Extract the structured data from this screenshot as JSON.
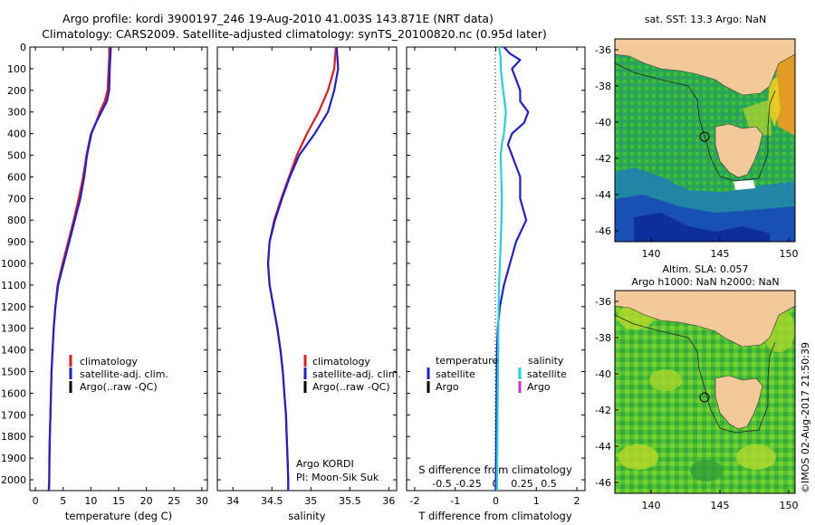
{
  "header": {
    "title_line1": "Argo profile: kordi 3900197_246 19-Aug-2010 41.003S 143.871E (NRT data)",
    "title_line2": "Climatology: CARS2009. Satellite-adjusted climatology: synTS_20100820.nc (0.95d later)"
  },
  "colors": {
    "climatology": "#e41a1c",
    "satellite": "#1f1fd6",
    "argo": "#000000",
    "satellite_s": "#22d3d8",
    "argo_s": "#cc33cc",
    "land": "#f4c99a"
  },
  "depth_ticks": [
    0,
    100,
    200,
    300,
    400,
    500,
    600,
    700,
    800,
    900,
    1000,
    1100,
    1200,
    1300,
    1400,
    1500,
    1600,
    1700,
    1800,
    1900,
    2000
  ],
  "chart_data": [
    {
      "id": "temperature",
      "type": "line",
      "xlabel": "temperature (deg C)",
      "xlim": [
        -1,
        31
      ],
      "ylim": [
        2050,
        0
      ],
      "xticks": [
        0,
        5,
        10,
        15,
        20,
        25,
        30
      ],
      "legend": [
        "climatology",
        "satellite-adj. clim.",
        "Argo(..raw -QC)"
      ],
      "series": [
        {
          "name": "climatology",
          "color": "#e41a1c",
          "points": [
            [
              13.3,
              0
            ],
            [
              13.3,
              50
            ],
            [
              13.2,
              100
            ],
            [
              13.0,
              200
            ],
            [
              12.5,
              250
            ],
            [
              11.6,
              300
            ],
            [
              10.9,
              350
            ],
            [
              10.0,
              400
            ],
            [
              9.6,
              450
            ],
            [
              9.2,
              500
            ],
            [
              8.6,
              600
            ],
            [
              7.8,
              700
            ],
            [
              6.9,
              800
            ],
            [
              5.9,
              900
            ],
            [
              4.9,
              1000
            ],
            [
              4.0,
              1100
            ],
            [
              3.6,
              1200
            ],
            [
              3.3,
              1300
            ],
            [
              3.1,
              1400
            ],
            [
              2.9,
              1500
            ],
            [
              2.8,
              1600
            ],
            [
              2.7,
              1700
            ],
            [
              2.6,
              1800
            ],
            [
              2.5,
              1900
            ],
            [
              2.5,
              2000
            ],
            [
              2.4,
              2050
            ]
          ]
        },
        {
          "name": "satellite-adj. clim.",
          "color": "#1f1fd6",
          "points": [
            [
              13.6,
              0
            ],
            [
              13.5,
              50
            ],
            [
              13.4,
              100
            ],
            [
              13.3,
              200
            ],
            [
              12.9,
              250
            ],
            [
              11.9,
              300
            ],
            [
              10.9,
              350
            ],
            [
              10.1,
              400
            ],
            [
              9.7,
              450
            ],
            [
              9.3,
              500
            ],
            [
              8.8,
              600
            ],
            [
              8.1,
              700
            ],
            [
              7.1,
              800
            ],
            [
              6.1,
              900
            ],
            [
              5.1,
              1000
            ],
            [
              4.1,
              1100
            ],
            [
              3.6,
              1200
            ],
            [
              3.3,
              1300
            ],
            [
              3.1,
              1400
            ],
            [
              2.9,
              1500
            ],
            [
              2.8,
              1600
            ],
            [
              2.7,
              1700
            ],
            [
              2.6,
              1800
            ],
            [
              2.55,
              1900
            ],
            [
              2.5,
              2000
            ],
            [
              2.45,
              2050
            ]
          ]
        }
      ]
    },
    {
      "id": "salinity",
      "type": "line",
      "xlabel": "salinity",
      "xlim": [
        33.8,
        36.1
      ],
      "ylim": [
        2050,
        0
      ],
      "xticks": [
        34,
        34.5,
        35,
        35.5,
        36
      ],
      "legend": [
        "climatology",
        "satellite-adj. clim.",
        "Argo(..raw -QC)"
      ],
      "annotations": [
        "Argo KORDI",
        "PI: Moon-Sik Suk"
      ],
      "series": [
        {
          "name": "climatology",
          "color": "#e41a1c",
          "points": [
            [
              35.32,
              0
            ],
            [
              35.31,
              50
            ],
            [
              35.3,
              100
            ],
            [
              35.22,
              200
            ],
            [
              35.1,
              300
            ],
            [
              34.95,
              400
            ],
            [
              34.82,
              500
            ],
            [
              34.72,
              600
            ],
            [
              34.62,
              700
            ],
            [
              34.53,
              800
            ],
            [
              34.47,
              900
            ],
            [
              34.45,
              1000
            ],
            [
              34.47,
              1100
            ],
            [
              34.52,
              1200
            ],
            [
              34.57,
              1300
            ],
            [
              34.61,
              1400
            ],
            [
              34.64,
              1500
            ],
            [
              34.66,
              1600
            ],
            [
              34.68,
              1700
            ],
            [
              34.69,
              1800
            ],
            [
              34.7,
              1900
            ],
            [
              34.71,
              2000
            ],
            [
              34.71,
              2050
            ]
          ]
        },
        {
          "name": "satellite-adj. clim.",
          "color": "#1f1fd6",
          "points": [
            [
              35.33,
              0
            ],
            [
              35.34,
              50
            ],
            [
              35.35,
              100
            ],
            [
              35.3,
              200
            ],
            [
              35.22,
              300
            ],
            [
              35.05,
              400
            ],
            [
              34.85,
              500
            ],
            [
              34.73,
              600
            ],
            [
              34.63,
              700
            ],
            [
              34.54,
              800
            ],
            [
              34.47,
              900
            ],
            [
              34.45,
              1000
            ],
            [
              34.47,
              1100
            ],
            [
              34.52,
              1200
            ],
            [
              34.57,
              1300
            ],
            [
              34.61,
              1400
            ],
            [
              34.64,
              1500
            ],
            [
              34.66,
              1600
            ],
            [
              34.68,
              1700
            ],
            [
              34.69,
              1800
            ],
            [
              34.7,
              1900
            ],
            [
              34.71,
              2000
            ],
            [
              34.71,
              2050
            ]
          ]
        }
      ]
    },
    {
      "id": "differences",
      "type": "line",
      "xlabel": "T difference from climatology",
      "x2label": "S difference from climatology",
      "xlim": [
        -2.2,
        2.2
      ],
      "ylim": [
        2050,
        0
      ],
      "xticks": [
        "-2",
        "-1",
        "0",
        "1",
        "2"
      ],
      "x2ticks": [
        "-0.5",
        "-0.25",
        "0",
        "0.25",
        "0.5"
      ],
      "legend_left": {
        "header": "temperature",
        "items": [
          "satellite",
          "Argo"
        ]
      },
      "legend_right": {
        "header": "salinity",
        "items": [
          "satellite",
          "Argo"
        ]
      },
      "series": [
        {
          "name": "satellite",
          "color": "#1f1fd6",
          "points": [
            [
              0.2,
              0
            ],
            [
              0.35,
              30
            ],
            [
              0.6,
              60
            ],
            [
              0.4,
              100
            ],
            [
              0.5,
              150
            ],
            [
              0.6,
              200
            ],
            [
              0.6,
              250
            ],
            [
              0.8,
              300
            ],
            [
              0.7,
              350
            ],
            [
              0.4,
              400
            ],
            [
              0.3,
              450
            ],
            [
              0.4,
              500
            ],
            [
              0.6,
              600
            ],
            [
              0.6,
              700
            ],
            [
              0.75,
              800
            ],
            [
              0.5,
              900
            ],
            [
              0.35,
              1000
            ],
            [
              0.2,
              1100
            ],
            [
              0.1,
              1200
            ],
            [
              0.05,
              1300
            ],
            [
              0.03,
              1400
            ],
            [
              0.02,
              1600
            ],
            [
              0.0,
              2050
            ]
          ]
        },
        {
          "name": "satellite",
          "color": "#22d3d8",
          "points": [
            [
              0.08,
              0
            ],
            [
              0.12,
              50
            ],
            [
              0.12,
              100
            ],
            [
              0.18,
              200
            ],
            [
              0.25,
              300
            ],
            [
              0.2,
              400
            ],
            [
              0.15,
              450
            ],
            [
              0.12,
              500
            ],
            [
              0.15,
              700
            ],
            [
              0.14,
              800
            ],
            [
              0.12,
              900
            ],
            [
              0.1,
              1000
            ],
            [
              0.08,
              1100
            ],
            [
              0.07,
              1200
            ],
            [
              0.06,
              1400
            ],
            [
              0.05,
              1600
            ],
            [
              0.04,
              1800
            ],
            [
              0.03,
              2050
            ]
          ]
        }
      ]
    }
  ],
  "maps": [
    {
      "title": "sat. SST: 13.3  Argo: NaN",
      "yticks": [
        "-36",
        "-38",
        "-40",
        "-42",
        "-44",
        "-46"
      ],
      "xticks": [
        "140",
        "145",
        "150"
      ]
    },
    {
      "title_line1": "Altim. SLA: 0.057",
      "title_line2": "Argo h1000: NaN  h2000: NaN",
      "yticks": [
        "-36",
        "-38",
        "-40",
        "-42",
        "-44",
        "-46"
      ],
      "xticks": [
        "140",
        "145",
        "150"
      ]
    }
  ],
  "footer_stamp": "©IMOS 02-Aug-2017 21:50:39"
}
